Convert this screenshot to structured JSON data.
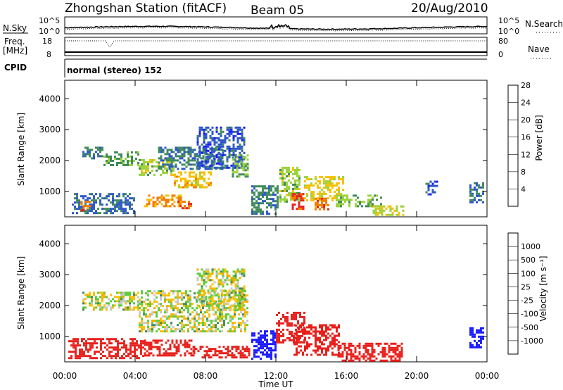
{
  "header": {
    "station_title": "Zhongshan Station (fitACF)",
    "beam": "Beam 05",
    "date": "20/Aug/2010"
  },
  "strips": {
    "nsky_label": "N.Sky",
    "nsearch_label": "N.Search",
    "nsky_ticks": [
      "10^5",
      "10^0"
    ],
    "nsearch_ticks": [
      "10^5",
      "10^0"
    ],
    "freq_label_top": "Freq.",
    "freq_label_bottom": "[MHz]",
    "freq_ticks": [
      "18",
      "8"
    ],
    "nave_label": "Nave",
    "nave_ticks": [
      "80",
      "0"
    ],
    "cpid_label": "CPID",
    "cpid_text": "normal (stereo) 152"
  },
  "chart_data": [
    {
      "type": "heatmap",
      "name": "power",
      "ylabel": "Slant Range [km]",
      "yticks": [
        "1000",
        "2000",
        "3000",
        "4000"
      ],
      "ylim": [
        180,
        4600
      ],
      "xlim": [
        0,
        24
      ],
      "colorbar": {
        "title": "Power [dB]",
        "tick_labels": [
          "4",
          "8",
          "12",
          "16",
          "20",
          "24",
          "28"
        ],
        "colors": [
          "#1a1aff",
          "#2c55c9",
          "#3f8a5a",
          "#9bd23a",
          "#f5c000",
          "#f07a00",
          "#e8201b"
        ]
      },
      "patches": [
        {
          "t0": 1.0,
          "t1": 2.2,
          "r0": 2100,
          "r1": 2450,
          "v": 9
        },
        {
          "t0": 2.2,
          "t1": 4.2,
          "r0": 1850,
          "r1": 2300,
          "v": 11
        },
        {
          "t0": 4.2,
          "t1": 6.2,
          "r0": 1550,
          "r1": 2050,
          "v": 14
        },
        {
          "t0": 6.2,
          "t1": 8.3,
          "r0": 1150,
          "r1": 1650,
          "v": 18
        },
        {
          "t0": 5.3,
          "t1": 9.0,
          "r0": 1700,
          "r1": 2450,
          "v": 9
        },
        {
          "t0": 7.5,
          "t1": 10.2,
          "r0": 1800,
          "r1": 3100,
          "v": 6
        },
        {
          "t0": 9.5,
          "t1": 10.4,
          "r0": 1500,
          "r1": 2200,
          "v": 12
        },
        {
          "t0": 4.5,
          "t1": 6.6,
          "r0": 550,
          "r1": 900,
          "v": 20
        },
        {
          "t0": 6.4,
          "t1": 7.2,
          "r0": 450,
          "r1": 700,
          "v": 24
        },
        {
          "t0": 0.4,
          "t1": 4.0,
          "r0": 320,
          "r1": 950,
          "v": 7
        },
        {
          "t0": 0.9,
          "t1": 1.5,
          "r0": 400,
          "r1": 700,
          "v": 22
        },
        {
          "t0": 10.6,
          "t1": 12.1,
          "r0": 300,
          "r1": 1200,
          "v": 9
        },
        {
          "t0": 12.2,
          "t1": 13.4,
          "r0": 700,
          "r1": 1800,
          "v": 14
        },
        {
          "t0": 12.9,
          "t1": 13.6,
          "r0": 450,
          "r1": 950,
          "v": 26
        },
        {
          "t0": 13.6,
          "t1": 15.8,
          "r0": 700,
          "r1": 1500,
          "v": 17
        },
        {
          "t0": 14.2,
          "t1": 15.0,
          "r0": 400,
          "r1": 800,
          "v": 22
        },
        {
          "t0": 15.4,
          "t1": 18.0,
          "r0": 500,
          "r1": 900,
          "v": 13
        },
        {
          "t0": 17.5,
          "t1": 19.2,
          "r0": 230,
          "r1": 550,
          "v": 16
        },
        {
          "t0": 23.0,
          "t1": 23.8,
          "r0": 650,
          "r1": 1300,
          "v": 8
        },
        {
          "t0": 20.5,
          "t1": 21.2,
          "r0": 900,
          "r1": 1350,
          "v": 6
        }
      ]
    },
    {
      "type": "heatmap",
      "name": "velocity",
      "ylabel": "Slant Range [km]",
      "yticks": [
        "1000",
        "2000",
        "3000",
        "4000"
      ],
      "ylim": [
        180,
        4600
      ],
      "xlim": [
        0,
        24
      ],
      "colorbar": {
        "title": "Velocity [m s⁻¹]",
        "tick_labels": [
          "-1000",
          "-500",
          "-100",
          "-25",
          "25",
          "100",
          "500",
          "1000"
        ],
        "colors": [
          "#e8201b",
          "#f07a00",
          "#f5a800",
          "#f7c000",
          "#c8c8c8",
          "#5ccc3a",
          "#3f8a5a",
          "#2c55c9",
          "#1a1aff"
        ]
      },
      "patches": [
        {
          "t0": 1.0,
          "t1": 4.2,
          "r0": 1900,
          "r1": 2450,
          "v": 0
        },
        {
          "t0": 4.2,
          "t1": 10.4,
          "r0": 1150,
          "r1": 2500,
          "v": 0
        },
        {
          "t0": 7.5,
          "t1": 10.2,
          "r0": 1900,
          "r1": 3200,
          "v": 0
        },
        {
          "t0": 0.2,
          "t1": 4.5,
          "r0": 300,
          "r1": 950,
          "v": -150
        },
        {
          "t0": 4.5,
          "t1": 7.3,
          "r0": 400,
          "r1": 900,
          "v": -110
        },
        {
          "t0": 7.3,
          "t1": 10.5,
          "r0": 300,
          "r1": 700,
          "v": -60
        },
        {
          "t0": 10.6,
          "t1": 12.0,
          "r0": 280,
          "r1": 1200,
          "v": 400
        },
        {
          "t0": 12.0,
          "t1": 13.6,
          "r0": 800,
          "r1": 1800,
          "v": -300
        },
        {
          "t0": 13.0,
          "t1": 15.6,
          "r0": 400,
          "r1": 1400,
          "v": -200
        },
        {
          "t0": 15.5,
          "t1": 19.2,
          "r0": 250,
          "r1": 800,
          "v": -80
        },
        {
          "t0": 23.0,
          "t1": 23.8,
          "r0": 650,
          "r1": 1300,
          "v": 600
        }
      ]
    }
  ],
  "time_axis": {
    "ticks": [
      "00:00",
      "04:00",
      "08:00",
      "12:00",
      "16:00",
      "20:00",
      "00:00"
    ],
    "label": "Time UT"
  }
}
